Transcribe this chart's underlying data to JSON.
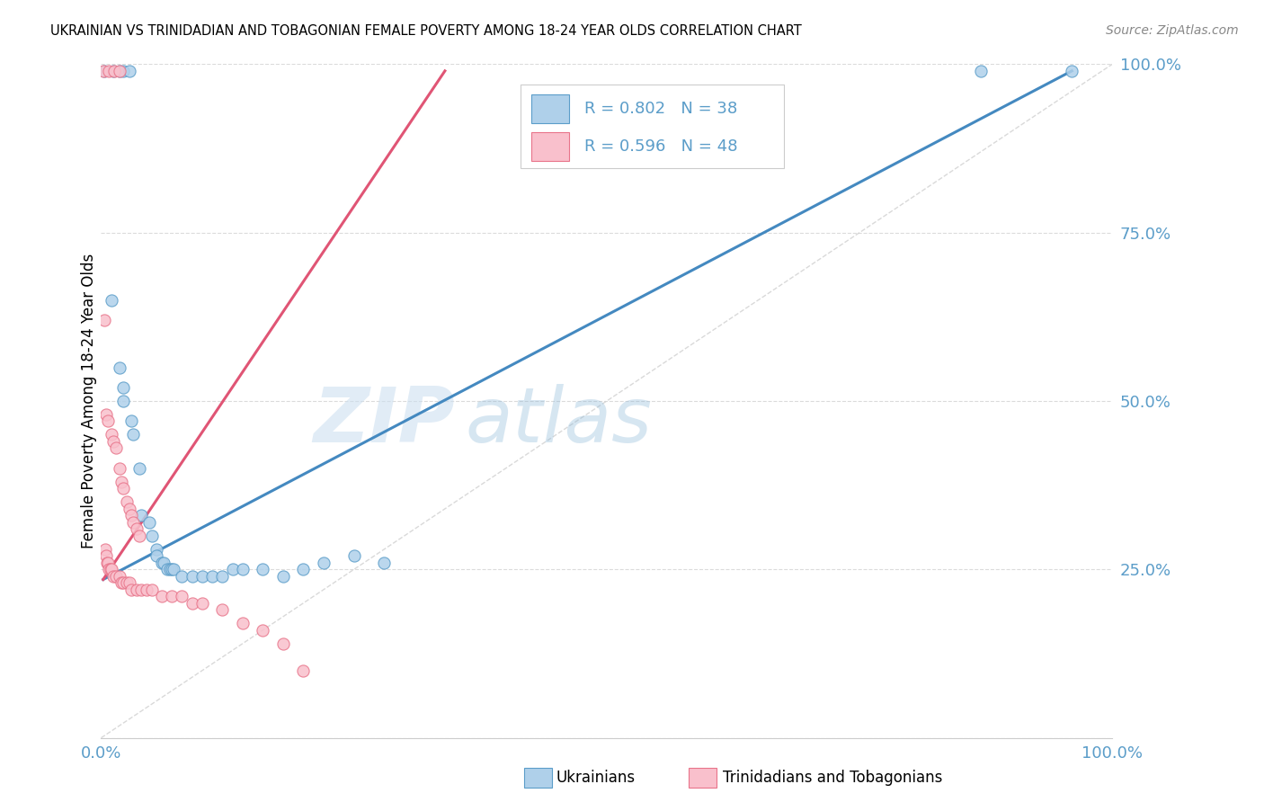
{
  "title": "UKRAINIAN VS TRINIDADIAN AND TOBAGONIAN FEMALE POVERTY AMONG 18-24 YEAR OLDS CORRELATION CHART",
  "source": "Source: ZipAtlas.com",
  "ylabel": "Female Poverty Among 18-24 Year Olds",
  "watermark_zip": "ZIP",
  "watermark_atlas": "atlas",
  "xlim": [
    0,
    1.0
  ],
  "ylim": [
    0,
    1.0
  ],
  "legend_R_blue": "R = 0.802",
  "legend_N_blue": "N = 38",
  "legend_R_pink": "R = 0.596",
  "legend_N_pink": "N = 48",
  "blue_fill": "#afd0ea",
  "blue_edge": "#5b9dc9",
  "blue_line": "#4489c0",
  "pink_fill": "#f9c0cc",
  "pink_edge": "#e8748a",
  "pink_line": "#e05575",
  "diagonal_color": "#d0d0d0",
  "tick_color": "#5b9dc9",
  "grid_color": "#d8d8d8",
  "blue_scatter": [
    [
      0.003,
      0.99
    ],
    [
      0.012,
      0.99
    ],
    [
      0.018,
      0.99
    ],
    [
      0.022,
      0.99
    ],
    [
      0.028,
      0.99
    ],
    [
      0.87,
      0.99
    ],
    [
      0.96,
      0.99
    ],
    [
      0.01,
      0.65
    ],
    [
      0.018,
      0.55
    ],
    [
      0.022,
      0.52
    ],
    [
      0.022,
      0.5
    ],
    [
      0.03,
      0.47
    ],
    [
      0.032,
      0.45
    ],
    [
      0.038,
      0.4
    ],
    [
      0.04,
      0.33
    ],
    [
      0.048,
      0.32
    ],
    [
      0.05,
      0.3
    ],
    [
      0.055,
      0.28
    ],
    [
      0.055,
      0.27
    ],
    [
      0.06,
      0.26
    ],
    [
      0.062,
      0.26
    ],
    [
      0.065,
      0.25
    ],
    [
      0.068,
      0.25
    ],
    [
      0.07,
      0.25
    ],
    [
      0.072,
      0.25
    ],
    [
      0.08,
      0.24
    ],
    [
      0.09,
      0.24
    ],
    [
      0.1,
      0.24
    ],
    [
      0.11,
      0.24
    ],
    [
      0.12,
      0.24
    ],
    [
      0.13,
      0.25
    ],
    [
      0.14,
      0.25
    ],
    [
      0.16,
      0.25
    ],
    [
      0.18,
      0.24
    ],
    [
      0.2,
      0.25
    ],
    [
      0.22,
      0.26
    ],
    [
      0.25,
      0.27
    ],
    [
      0.28,
      0.26
    ]
  ],
  "pink_scatter": [
    [
      0.002,
      0.99
    ],
    [
      0.008,
      0.99
    ],
    [
      0.013,
      0.99
    ],
    [
      0.018,
      0.99
    ],
    [
      0.003,
      0.62
    ],
    [
      0.005,
      0.48
    ],
    [
      0.007,
      0.47
    ],
    [
      0.01,
      0.45
    ],
    [
      0.012,
      0.44
    ],
    [
      0.015,
      0.43
    ],
    [
      0.018,
      0.4
    ],
    [
      0.02,
      0.38
    ],
    [
      0.022,
      0.37
    ],
    [
      0.025,
      0.35
    ],
    [
      0.028,
      0.34
    ],
    [
      0.03,
      0.33
    ],
    [
      0.032,
      0.32
    ],
    [
      0.035,
      0.31
    ],
    [
      0.038,
      0.3
    ],
    [
      0.004,
      0.28
    ],
    [
      0.005,
      0.27
    ],
    [
      0.006,
      0.26
    ],
    [
      0.007,
      0.26
    ],
    [
      0.008,
      0.25
    ],
    [
      0.009,
      0.25
    ],
    [
      0.01,
      0.25
    ],
    [
      0.012,
      0.24
    ],
    [
      0.015,
      0.24
    ],
    [
      0.018,
      0.24
    ],
    [
      0.02,
      0.23
    ],
    [
      0.022,
      0.23
    ],
    [
      0.025,
      0.23
    ],
    [
      0.028,
      0.23
    ],
    [
      0.03,
      0.22
    ],
    [
      0.035,
      0.22
    ],
    [
      0.04,
      0.22
    ],
    [
      0.045,
      0.22
    ],
    [
      0.05,
      0.22
    ],
    [
      0.06,
      0.21
    ],
    [
      0.07,
      0.21
    ],
    [
      0.08,
      0.21
    ],
    [
      0.09,
      0.2
    ],
    [
      0.1,
      0.2
    ],
    [
      0.12,
      0.19
    ],
    [
      0.14,
      0.17
    ],
    [
      0.16,
      0.16
    ],
    [
      0.18,
      0.14
    ],
    [
      0.2,
      0.1
    ]
  ],
  "blue_line_x": [
    0.002,
    0.96
  ],
  "blue_line_y": [
    0.235,
    0.99
  ],
  "pink_line_x": [
    0.002,
    0.34
  ],
  "pink_line_y": [
    0.235,
    0.99
  ]
}
